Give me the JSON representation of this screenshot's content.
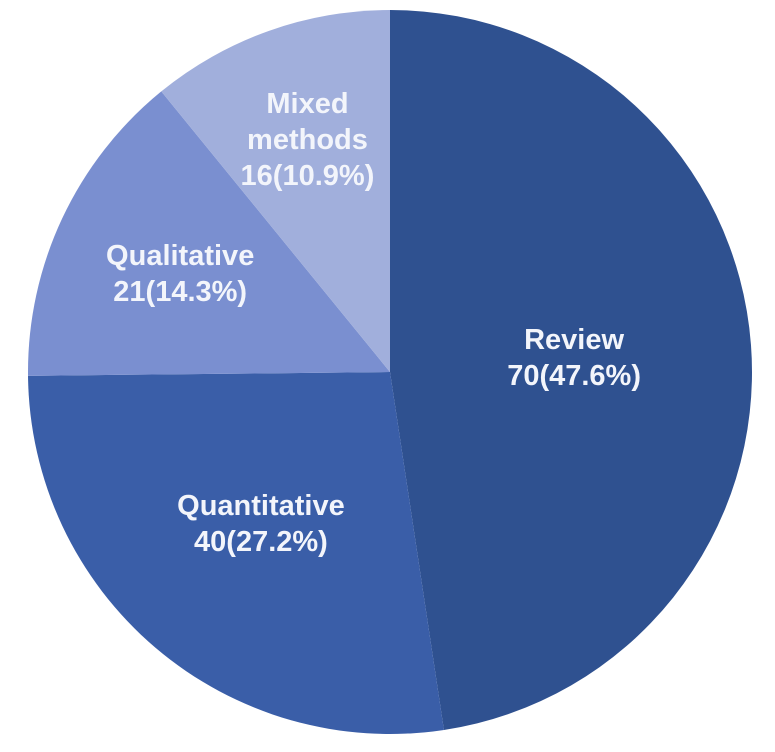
{
  "chart_data": {
    "type": "pie",
    "categories": [
      "Review",
      "Quantitative",
      "Qualitative",
      "Mixed methods"
    ],
    "values": [
      70,
      40,
      21,
      16
    ],
    "value_labels": [
      "70(47.6%)",
      "40(27.2%)",
      "21(14.3%)",
      "16(10.9%)"
    ],
    "colors": [
      "#2f5190",
      "#3a5ea8",
      "#7a8fd0",
      "#a1afdc"
    ]
  }
}
